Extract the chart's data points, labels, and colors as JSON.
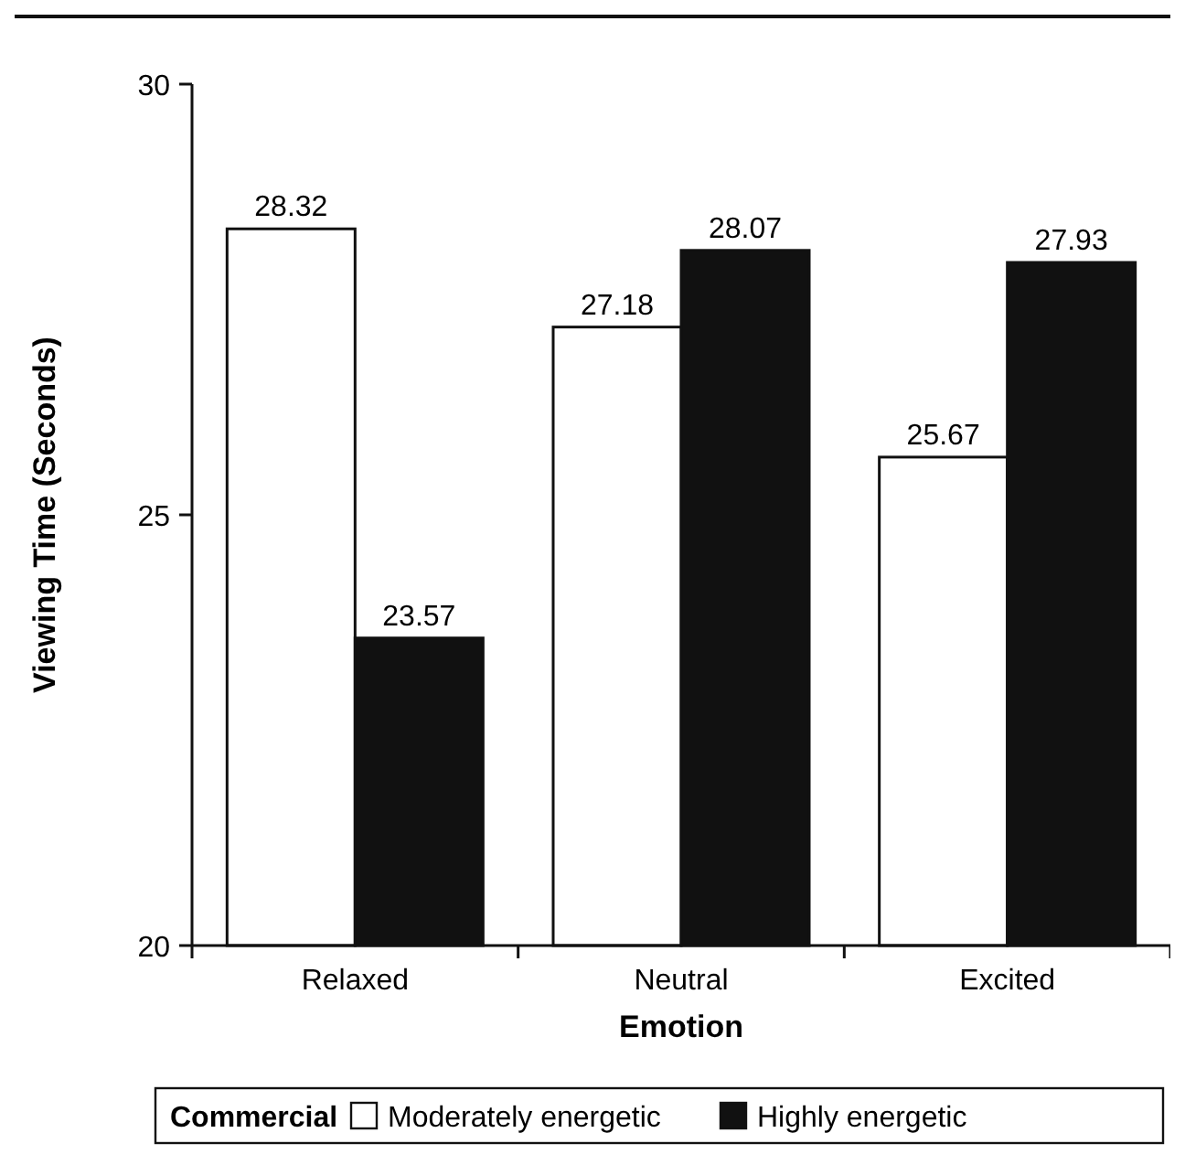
{
  "chart_data": {
    "type": "bar",
    "xlabel": "Emotion",
    "ylabel": "Viewing Time (Seconds)",
    "legend_title": "Commercial",
    "categories": [
      "Relaxed",
      "Neutral",
      "Excited"
    ],
    "series": [
      {
        "name": "Moderately energetic",
        "color": "#ffffff",
        "values": [
          28.32,
          27.18,
          25.67
        ]
      },
      {
        "name": "Highly energetic",
        "color": "#111111",
        "values": [
          23.57,
          28.07,
          27.93
        ]
      }
    ],
    "ylim": [
      20,
      30
    ],
    "yticks": [
      20,
      25,
      30
    ],
    "data_labels": true,
    "legend": "bottom",
    "grid": false
  }
}
